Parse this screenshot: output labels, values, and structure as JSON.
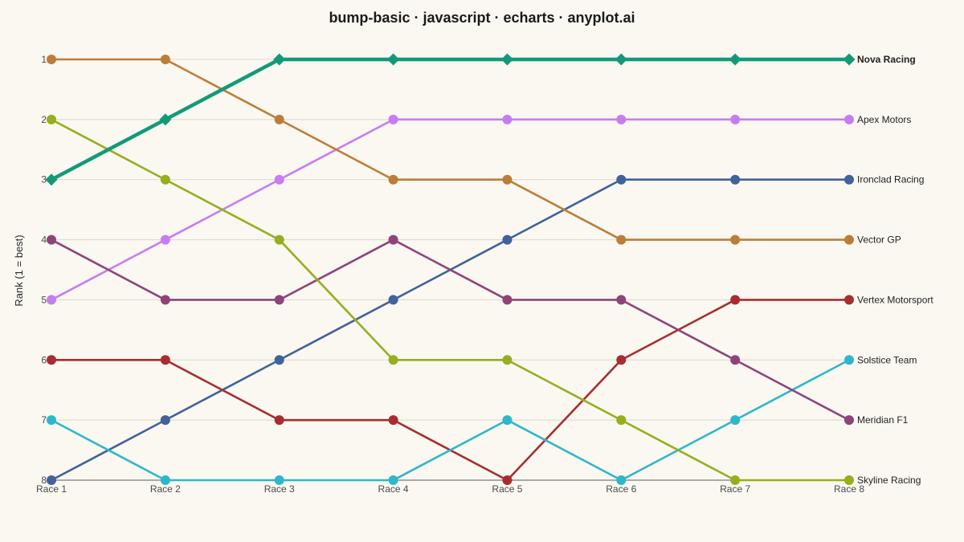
{
  "chart_data": {
    "type": "line",
    "title": "bump-basic · javascript · echarts · anyplot.ai",
    "ylabel": "Rank (1 = best)",
    "xlabel": "",
    "categories": [
      "Race 1",
      "Race 2",
      "Race 3",
      "Race 4",
      "Race 5",
      "Race 6",
      "Race 7",
      "Race 8"
    ],
    "y_ticks": [
      "1",
      "2",
      "3",
      "4",
      "5",
      "6",
      "7",
      "8"
    ],
    "ylim": [
      1,
      8
    ],
    "y_inverted": true,
    "grid": true,
    "series": [
      {
        "name": "Nova Racing",
        "color": "#129A78",
        "marker": "diamond",
        "highlight": true,
        "values": [
          3,
          2,
          1,
          1,
          1,
          1,
          1,
          1
        ]
      },
      {
        "name": "Apex Motors",
        "color": "#C77DF0",
        "marker": "circle",
        "highlight": false,
        "values": [
          5,
          4,
          3,
          2,
          2,
          2,
          2,
          2
        ]
      },
      {
        "name": "Ironclad Racing",
        "color": "#41629A",
        "marker": "circle",
        "highlight": false,
        "values": [
          8,
          7,
          6,
          5,
          4,
          3,
          3,
          3
        ]
      },
      {
        "name": "Vector GP",
        "color": "#BC7D38",
        "marker": "circle",
        "highlight": false,
        "values": [
          1,
          1,
          2,
          3,
          3,
          4,
          4,
          4
        ]
      },
      {
        "name": "Vertex Motorsport",
        "color": "#A72D30",
        "marker": "circle",
        "highlight": false,
        "values": [
          6,
          6,
          7,
          7,
          8,
          6,
          5,
          5
        ]
      },
      {
        "name": "Solstice Team",
        "color": "#2EB7CB",
        "marker": "circle",
        "highlight": false,
        "values": [
          7,
          8,
          8,
          8,
          7,
          8,
          7,
          6
        ]
      },
      {
        "name": "Meridian F1",
        "color": "#8E4479",
        "marker": "circle",
        "highlight": false,
        "values": [
          4,
          5,
          5,
          4,
          5,
          5,
          6,
          7
        ]
      },
      {
        "name": "Skyline Racing",
        "color": "#97AE1F",
        "marker": "circle",
        "highlight": false,
        "values": [
          2,
          3,
          4,
          6,
          6,
          7,
          8,
          8
        ]
      }
    ]
  }
}
